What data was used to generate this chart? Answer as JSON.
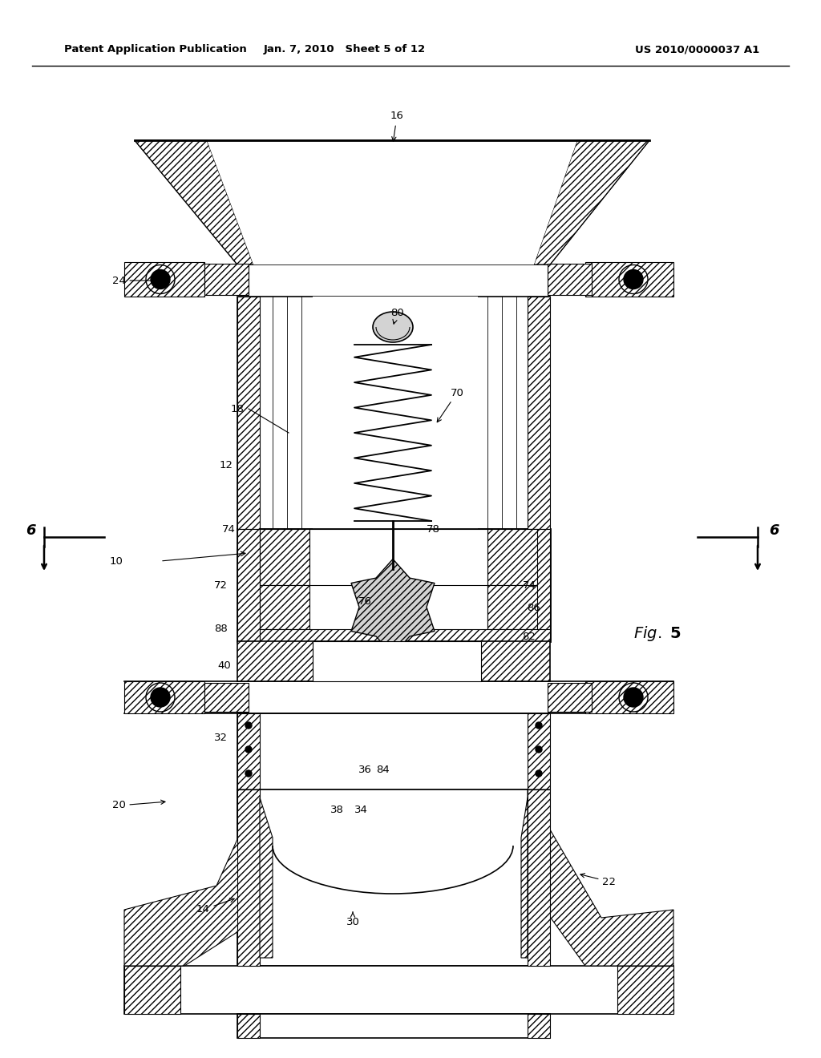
{
  "bg_color": "#ffffff",
  "header_left": "Patent Application Publication",
  "header_center": "Jan. 7, 2010   Sheet 5 of 12",
  "header_right": "US 2010/0000037 A1",
  "figure_label": "Fig. 5"
}
